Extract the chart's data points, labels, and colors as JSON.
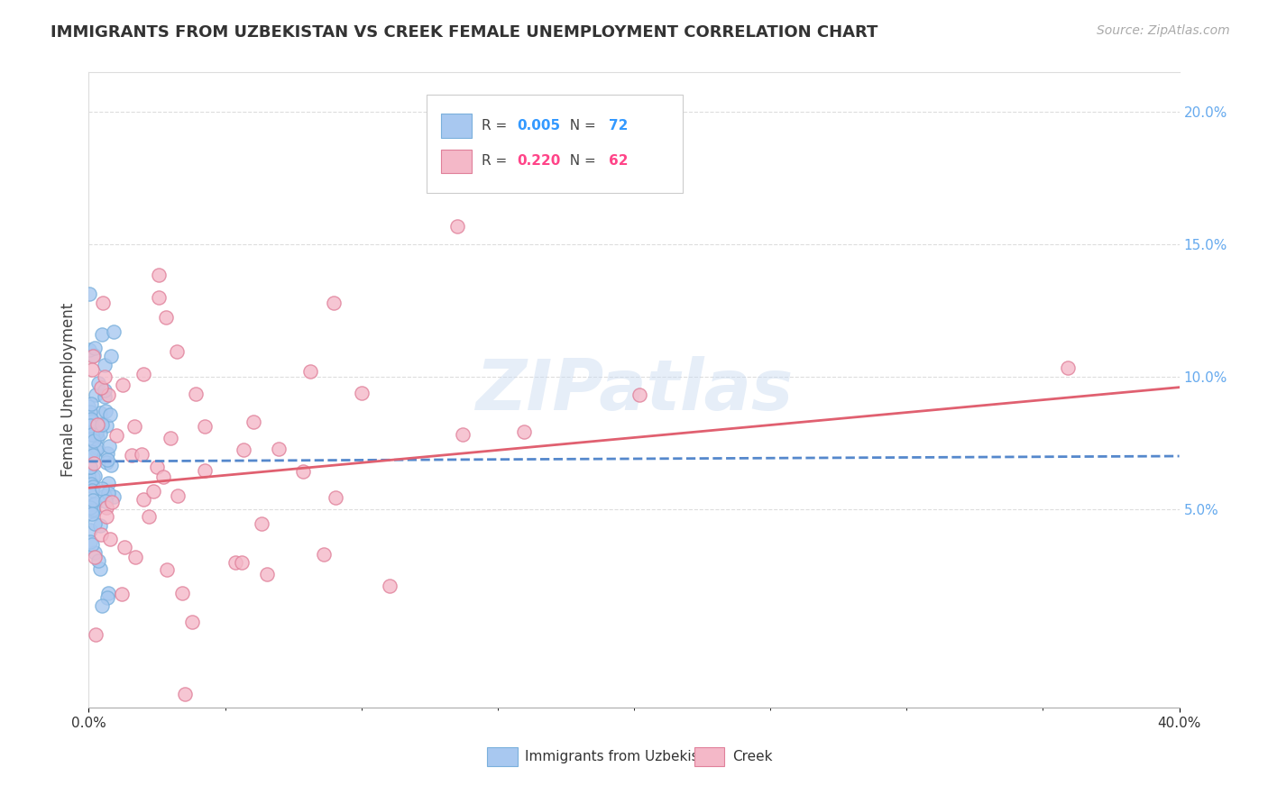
{
  "title": "IMMIGRANTS FROM UZBEKISTAN VS CREEK FEMALE UNEMPLOYMENT CORRELATION CHART",
  "source": "Source: ZipAtlas.com",
  "ylabel": "Female Unemployment",
  "right_yticks": [
    "20.0%",
    "15.0%",
    "10.0%",
    "5.0%"
  ],
  "right_ytick_vals": [
    0.2,
    0.15,
    0.1,
    0.05
  ],
  "watermark": "ZIPatlas",
  "xmin": 0.0,
  "xmax": 0.4,
  "ymin": -0.025,
  "ymax": 0.215,
  "uzbek_line_x": [
    0.0,
    0.4
  ],
  "uzbek_line_y": [
    0.068,
    0.07
  ],
  "creek_line_x": [
    0.0,
    0.4
  ],
  "creek_line_y": [
    0.058,
    0.096
  ],
  "uzbek_color": "#a8c8f0",
  "uzbek_edge_color": "#7ab0dc",
  "creek_color": "#f4b8c8",
  "creek_edge_color": "#e0809a",
  "uzbek_line_color": "#5588cc",
  "creek_line_color": "#e06070",
  "grid_color": "#dddddd",
  "background_color": "#ffffff",
  "legend_r1": "0.005",
  "legend_n1": "72",
  "legend_r2": "0.220",
  "legend_n2": "62",
  "legend_color1": "#a8c8f0",
  "legend_color2": "#f4b8c8",
  "legend_text_color": "#444444",
  "legend_num_color1": "#3399ff",
  "legend_num_color2": "#ff4488"
}
